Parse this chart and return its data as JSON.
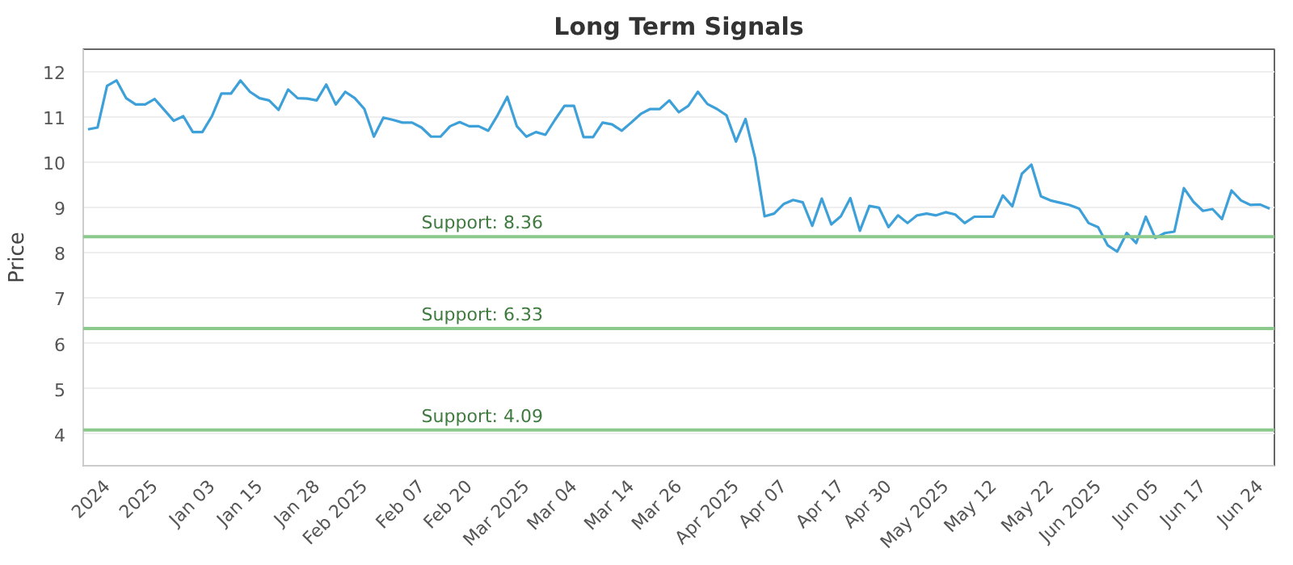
{
  "chart_data": {
    "type": "line",
    "title": "Long Term Signals",
    "ylabel": "Price",
    "categories": [
      null,
      null,
      "2024",
      null,
      null,
      null,
      null,
      "2025",
      null,
      null,
      null,
      null,
      null,
      "Jan 03",
      null,
      null,
      null,
      null,
      "Jan 15",
      null,
      null,
      null,
      null,
      null,
      "Jan 28",
      null,
      null,
      null,
      null,
      "Feb 2025",
      null,
      null,
      null,
      null,
      null,
      "Feb 07",
      null,
      null,
      null,
      null,
      "Feb 20",
      null,
      null,
      null,
      null,
      null,
      "Mar 2025",
      null,
      null,
      null,
      null,
      "Mar 04",
      null,
      null,
      null,
      null,
      null,
      "Mar 14",
      null,
      null,
      null,
      null,
      "Mar 26",
      null,
      null,
      null,
      null,
      null,
      "Apr 2025",
      null,
      null,
      null,
      null,
      "Apr 07",
      null,
      null,
      null,
      null,
      null,
      "Apr 17",
      null,
      null,
      null,
      null,
      "Apr 30",
      null,
      null,
      null,
      null,
      null,
      "May 2025",
      null,
      null,
      null,
      null,
      "May 12",
      null,
      null,
      null,
      null,
      null,
      "May 22",
      null,
      null,
      null,
      null,
      "Jun 2025",
      null,
      null,
      null,
      null,
      null,
      "Jun 05",
      null,
      null,
      null,
      null,
      "Jun 17",
      null,
      null,
      null,
      null,
      null,
      "Jun 24",
      null
    ],
    "series": [
      {
        "color": "#3ea0d8",
        "values": [
          10.73,
          10.77,
          11.69,
          11.81,
          11.42,
          11.28,
          11.28,
          11.4,
          11.16,
          10.92,
          11.02,
          10.67,
          10.67,
          11.02,
          11.52,
          11.52,
          11.81,
          11.56,
          11.42,
          11.37,
          11.16,
          11.61,
          11.42,
          11.41,
          11.37,
          11.72,
          11.28,
          11.56,
          11.42,
          11.18,
          10.57,
          10.99,
          10.94,
          10.88,
          10.88,
          10.77,
          10.57,
          10.57,
          10.8,
          10.89,
          10.8,
          10.8,
          10.7,
          11.05,
          11.45,
          10.8,
          10.57,
          10.67,
          10.61,
          10.94,
          11.25,
          11.25,
          10.56,
          10.56,
          10.88,
          10.84,
          10.7,
          10.88,
          11.07,
          11.18,
          11.18,
          11.37,
          11.11,
          11.25,
          11.56,
          11.29,
          11.18,
          11.04,
          10.46,
          10.96,
          10.1,
          8.81,
          8.87,
          9.08,
          9.17,
          9.12,
          8.6,
          9.2,
          8.63,
          8.81,
          9.21,
          8.49,
          9.04,
          9.0,
          8.57,
          8.83,
          8.66,
          8.83,
          8.87,
          8.83,
          8.9,
          8.85,
          8.66,
          8.8,
          8.8,
          8.8,
          9.27,
          9.03,
          9.75,
          9.95,
          9.25,
          9.16,
          9.11,
          9.06,
          8.98,
          8.66,
          8.57,
          8.17,
          8.03,
          8.44,
          8.22,
          8.8,
          8.33,
          8.44,
          8.47,
          9.43,
          9.13,
          8.93,
          8.97,
          8.75,
          9.38,
          9.16,
          9.06,
          9.07,
          8.98
        ]
      }
    ],
    "ylim": [
      3.3,
      12.5
    ],
    "yticks": [
      4,
      5,
      6,
      7,
      8,
      9,
      10,
      11,
      12
    ],
    "ref_lines": [
      {
        "axis": "y",
        "value": 8.36,
        "label": "Support: 8.36",
        "color": "#8cc98c"
      },
      {
        "axis": "y",
        "value": 6.33,
        "label": "Support: 6.33",
        "color": "#8cc98c"
      },
      {
        "axis": "y",
        "value": 4.09,
        "label": "Support: 4.09",
        "color": "#8cc98c"
      }
    ],
    "grid": "y",
    "marker": "none",
    "line_style": "solid"
  }
}
